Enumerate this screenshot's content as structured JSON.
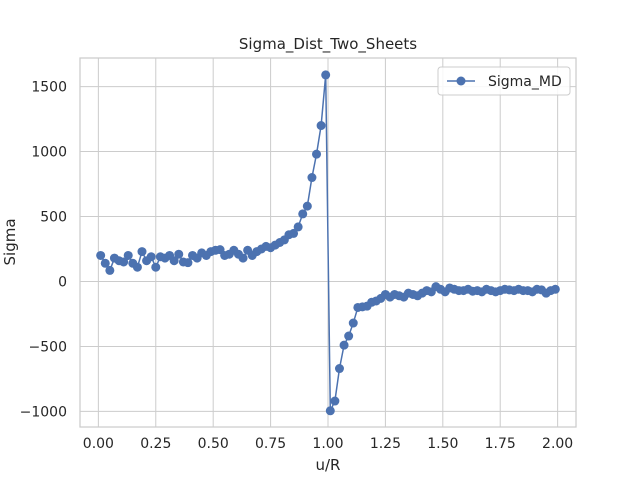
{
  "chart_data": {
    "type": "line",
    "title": "Sigma_Dist_Two_Sheets",
    "xlabel": "u/R",
    "ylabel": "Sigma",
    "xlim": [
      -0.08,
      2.08
    ],
    "ylim": [
      -1120,
      1720
    ],
    "xticks": [
      0.0,
      0.25,
      0.5,
      0.75,
      1.0,
      1.25,
      1.5,
      1.75,
      2.0
    ],
    "xtick_labels": [
      "0.00",
      "0.25",
      "0.50",
      "0.75",
      "1.00",
      "1.25",
      "1.50",
      "1.75",
      "2.00"
    ],
    "yticks": [
      -1000,
      -500,
      0,
      500,
      1000,
      1500
    ],
    "ytick_labels": [
      "−1000",
      "−500",
      "0",
      "500",
      "1000",
      "1500"
    ],
    "grid": true,
    "legend": "top-right",
    "series": [
      {
        "name": "Sigma_MD",
        "color": "#4c72b0",
        "marker": "circle",
        "x": [
          0.01,
          0.03,
          0.05,
          0.07,
          0.09,
          0.11,
          0.13,
          0.15,
          0.17,
          0.19,
          0.21,
          0.23,
          0.25,
          0.27,
          0.29,
          0.31,
          0.33,
          0.35,
          0.37,
          0.39,
          0.41,
          0.43,
          0.45,
          0.47,
          0.49,
          0.51,
          0.53,
          0.55,
          0.57,
          0.59,
          0.61,
          0.63,
          0.65,
          0.67,
          0.69,
          0.71,
          0.73,
          0.75,
          0.77,
          0.79,
          0.81,
          0.83,
          0.85,
          0.87,
          0.89,
          0.91,
          0.93,
          0.95,
          0.97,
          0.99,
          1.01,
          1.03,
          1.05,
          1.07,
          1.09,
          1.11,
          1.13,
          1.15,
          1.17,
          1.19,
          1.21,
          1.23,
          1.25,
          1.27,
          1.29,
          1.31,
          1.33,
          1.35,
          1.37,
          1.39,
          1.41,
          1.43,
          1.45,
          1.47,
          1.49,
          1.51,
          1.53,
          1.55,
          1.57,
          1.59,
          1.61,
          1.63,
          1.65,
          1.67,
          1.69,
          1.71,
          1.73,
          1.75,
          1.77,
          1.79,
          1.81,
          1.83,
          1.85,
          1.87,
          1.89,
          1.91,
          1.93,
          1.95,
          1.97,
          1.99
        ],
        "y": [
          200,
          140,
          85,
          180,
          160,
          150,
          200,
          140,
          110,
          230,
          160,
          190,
          110,
          190,
          180,
          200,
          160,
          210,
          150,
          145,
          200,
          180,
          220,
          200,
          230,
          240,
          245,
          200,
          210,
          240,
          210,
          180,
          240,
          200,
          230,
          250,
          270,
          260,
          280,
          300,
          320,
          360,
          370,
          420,
          520,
          580,
          800,
          980,
          1200,
          1590,
          -995,
          -920,
          -670,
          -490,
          -420,
          -320,
          -200,
          -195,
          -190,
          -160,
          -150,
          -130,
          -100,
          -120,
          -100,
          -110,
          -120,
          -90,
          -100,
          -110,
          -90,
          -70,
          -80,
          -40,
          -60,
          -80,
          -50,
          -60,
          -70,
          -70,
          -60,
          -75,
          -70,
          -80,
          -60,
          -70,
          -80,
          -70,
          -60,
          -65,
          -70,
          -60,
          -70,
          -70,
          -80,
          -60,
          -65,
          -90,
          -70,
          -60
        ]
      }
    ]
  }
}
